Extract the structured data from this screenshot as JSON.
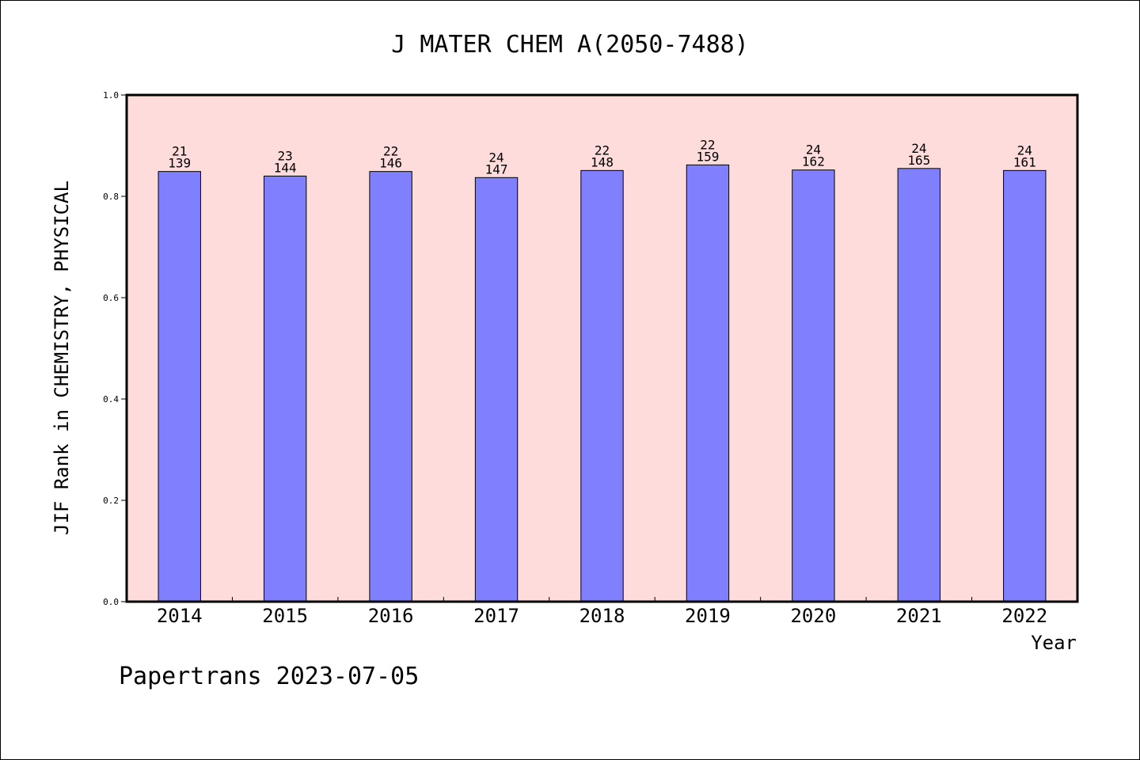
{
  "chart_data": {
    "type": "bar",
    "title": "J MATER CHEM A(2050-7488)",
    "xlabel": "Year",
    "ylabel": "JIF Rank in CHEMISTRY, PHYSICAL",
    "ylim": [
      0,
      1.0
    ],
    "yticks": [
      "0.0",
      "0.2",
      "0.4",
      "0.6",
      "0.8",
      "1.0"
    ],
    "grid": false,
    "categories": [
      "2014",
      "2015",
      "2016",
      "2017",
      "2018",
      "2019",
      "2020",
      "2021",
      "2022"
    ],
    "values": [
      0.849,
      0.84,
      0.849,
      0.837,
      0.851,
      0.862,
      0.852,
      0.855,
      0.851
    ],
    "labels_top": [
      "21",
      "23",
      "22",
      "24",
      "22",
      "22",
      "24",
      "24",
      "24"
    ],
    "labels_bottom": [
      "139",
      "144",
      "146",
      "147",
      "148",
      "159",
      "162",
      "165",
      "161"
    ]
  },
  "colors": {
    "plot_background": "#ffdcdc",
    "bar_fill": "#8080ff",
    "bar_stroke": "#000000"
  },
  "footer": "Papertrans 2023-07-05"
}
